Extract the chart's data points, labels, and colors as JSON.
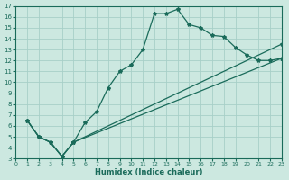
{
  "xlabel": "Humidex (Indice chaleur)",
  "bg_color": "#cce8e0",
  "grid_color": "#a8cfc8",
  "line_color": "#1a6b5a",
  "xlim": [
    0,
    23
  ],
  "ylim": [
    3,
    17
  ],
  "xticks": [
    0,
    1,
    2,
    3,
    4,
    5,
    6,
    7,
    8,
    9,
    10,
    11,
    12,
    13,
    14,
    15,
    16,
    17,
    18,
    19,
    20,
    21,
    22,
    23
  ],
  "yticks": [
    3,
    4,
    5,
    6,
    7,
    8,
    9,
    10,
    11,
    12,
    13,
    14,
    15,
    16,
    17
  ],
  "curve_x": [
    1,
    2,
    3,
    4,
    5,
    6,
    7,
    8,
    9,
    10,
    11,
    12,
    13,
    14,
    15,
    16,
    17,
    18,
    19,
    20,
    21,
    22,
    23
  ],
  "curve_y": [
    6.5,
    5.0,
    4.5,
    3.2,
    4.5,
    6.3,
    7.3,
    9.5,
    11.0,
    11.6,
    13.0,
    16.3,
    16.3,
    16.7,
    15.3,
    15.0,
    14.3,
    14.2,
    13.2,
    12.5,
    12.0,
    12.0,
    12.2
  ],
  "line2_x": [
    1,
    2,
    3,
    4,
    5,
    23
  ],
  "line2_y": [
    6.5,
    5.0,
    4.5,
    3.2,
    4.5,
    13.5
  ],
  "line3_x": [
    1,
    2,
    3,
    4,
    5,
    23
  ],
  "line3_y": [
    6.5,
    5.0,
    4.5,
    3.2,
    4.5,
    12.2
  ]
}
